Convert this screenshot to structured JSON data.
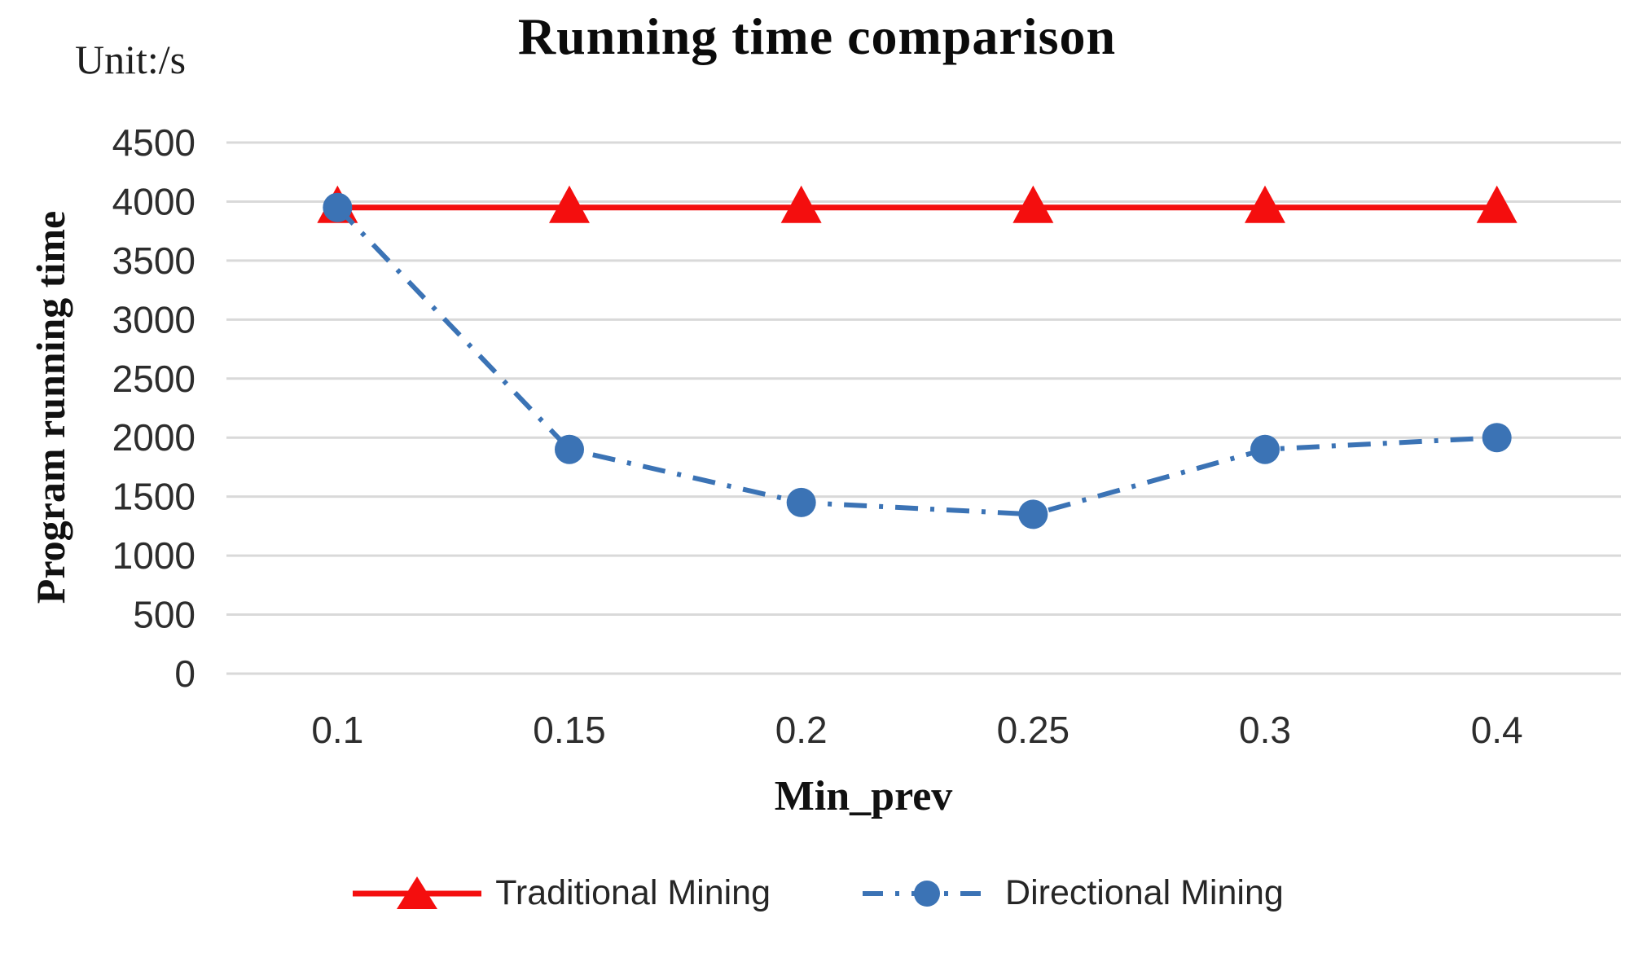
{
  "chart": {
    "title": "Running time comparison",
    "unit_label": "Unit:/s",
    "y_axis_label": "Program running time",
    "x_axis_label": "Min_prev"
  },
  "legend": {
    "items": [
      {
        "label": "Traditional Mining"
      },
      {
        "label": "Directional Mining"
      }
    ]
  },
  "chart_data": {
    "type": "line",
    "title": "Running time comparison",
    "unit_label": "Unit:/s",
    "xlabel": "Min_prev",
    "ylabel": "Program running time",
    "categories": [
      "0.1",
      "0.15",
      "0.2",
      "0.25",
      "0.3",
      "0.4"
    ],
    "ylim": [
      0,
      4500
    ],
    "ytick_step": 500,
    "ytick_labels": [
      "0",
      "500",
      "1000",
      "1500",
      "2000",
      "2500",
      "3000",
      "3500",
      "4000",
      "4500"
    ],
    "grid": true,
    "grid_color": "#d9d9d9",
    "legend_position": "bottom",
    "series": [
      {
        "name": "Traditional Mining",
        "color": "#f40e0e",
        "line_style": "solid",
        "marker": "triangle",
        "values": [
          3950,
          3950,
          3950,
          3950,
          3950,
          3950
        ]
      },
      {
        "name": "Directional Mining",
        "color": "#3b73b5",
        "line_style": "dash-dot",
        "marker": "circle",
        "values": [
          3950,
          1900,
          1450,
          1350,
          1900,
          2000
        ]
      }
    ]
  }
}
